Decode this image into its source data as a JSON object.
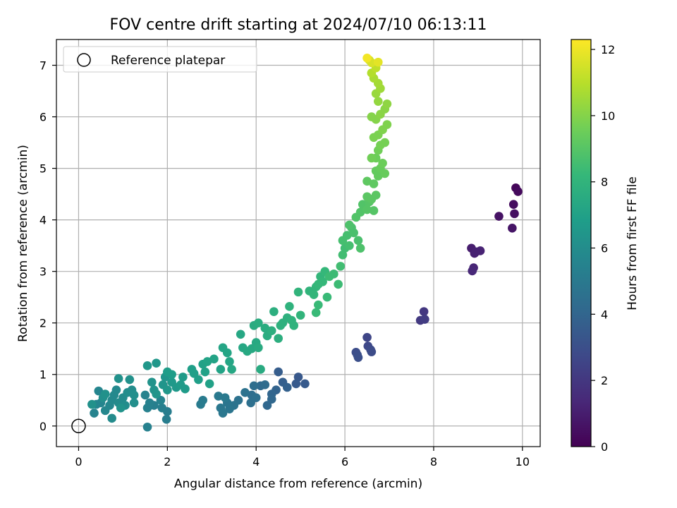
{
  "chart_data": {
    "type": "scatter",
    "title": "FOV centre drift starting at 2024/07/10 06:13:11",
    "xlabel": "Angular distance from reference (arcmin)",
    "ylabel": "Rotation from reference (arcmin)",
    "xlim": [
      -0.5,
      10.4
    ],
    "ylim": [
      -0.4,
      7.5
    ],
    "xticks": [
      0,
      2,
      4,
      6,
      8,
      10
    ],
    "yticks": [
      0,
      1,
      2,
      3,
      4,
      5,
      6,
      7
    ],
    "grid": true,
    "legend": {
      "location": "upper-left",
      "entries": [
        {
          "label": "Reference platepar",
          "marker": "open-circle"
        }
      ]
    },
    "reference_point": {
      "x": 0,
      "y": 0
    },
    "colorbar": {
      "label": "Hours from first FF file",
      "range": [
        0,
        12.3
      ],
      "ticks": [
        0,
        2,
        4,
        6,
        8,
        10,
        12
      ],
      "colormap": "viridis",
      "colormap_stops": [
        "#440154",
        "#482878",
        "#3e4989",
        "#31688e",
        "#26828e",
        "#1f9e89",
        "#35b779",
        "#6ece58",
        "#b5de2b",
        "#fde725"
      ]
    },
    "series": [
      {
        "columns": [
          "x",
          "y",
          "hours"
        ],
        "points": [
          [
            9.85,
            4.62,
            0.2
          ],
          [
            9.9,
            4.55,
            0.3
          ],
          [
            9.8,
            4.3,
            0.4
          ],
          [
            9.82,
            4.12,
            0.5
          ],
          [
            9.47,
            4.07,
            0.6
          ],
          [
            9.77,
            3.84,
            0.7
          ],
          [
            8.85,
            3.45,
            1.0
          ],
          [
            8.92,
            3.35,
            1.1
          ],
          [
            9.05,
            3.4,
            1.2
          ],
          [
            8.95,
            3.38,
            1.15
          ],
          [
            8.9,
            3.07,
            1.3
          ],
          [
            8.87,
            3.01,
            1.35
          ],
          [
            7.78,
            2.22,
            2.0
          ],
          [
            7.7,
            2.05,
            2.1
          ],
          [
            7.8,
            2.07,
            2.2
          ],
          [
            6.5,
            1.72,
            2.6
          ],
          [
            6.52,
            1.55,
            2.7
          ],
          [
            6.58,
            1.48,
            2.8
          ],
          [
            6.6,
            1.44,
            2.85
          ],
          [
            6.25,
            1.43,
            2.9
          ],
          [
            6.28,
            1.38,
            2.95
          ],
          [
            6.3,
            1.33,
            3.0
          ],
          [
            4.95,
            0.95,
            3.4
          ],
          [
            5.1,
            0.82,
            3.5
          ],
          [
            4.9,
            0.82,
            3.5
          ],
          [
            4.5,
            1.05,
            3.6
          ],
          [
            4.6,
            0.85,
            3.7
          ],
          [
            4.7,
            0.75,
            3.8
          ],
          [
            4.45,
            0.7,
            3.9
          ],
          [
            4.35,
            0.62,
            4.0
          ],
          [
            4.25,
            0.4,
            4.1
          ],
          [
            4.35,
            0.52,
            4.1
          ],
          [
            4.1,
            0.78,
            4.2
          ],
          [
            4.2,
            0.8,
            4.3
          ],
          [
            3.95,
            0.78,
            4.4
          ],
          [
            3.9,
            0.6,
            4.4
          ],
          [
            4.0,
            0.55,
            4.5
          ],
          [
            3.88,
            0.45,
            4.5
          ],
          [
            3.75,
            0.65,
            4.6
          ],
          [
            3.6,
            0.5,
            4.6
          ],
          [
            3.5,
            0.4,
            4.7
          ],
          [
            3.4,
            0.33,
            4.8
          ],
          [
            3.35,
            0.45,
            4.8
          ],
          [
            3.25,
            0.25,
            4.9
          ],
          [
            3.2,
            0.35,
            4.9
          ],
          [
            3.15,
            0.58,
            5.0
          ],
          [
            3.3,
            0.55,
            5.0
          ],
          [
            2.8,
            0.5,
            5.1
          ],
          [
            2.75,
            0.42,
            5.1
          ],
          [
            2.0,
            0.28,
            5.2
          ],
          [
            1.98,
            0.13,
            5.2
          ],
          [
            1.88,
            0.35,
            5.3
          ],
          [
            1.7,
            0.4,
            5.3
          ],
          [
            1.55,
            0.35,
            5.4
          ],
          [
            1.6,
            0.45,
            5.4
          ],
          [
            1.55,
            -0.02,
            5.4
          ],
          [
            1.5,
            0.6,
            5.5
          ],
          [
            1.85,
            0.5,
            5.5
          ],
          [
            0.35,
            0.25,
            5.5
          ],
          [
            0.4,
            0.42,
            5.6
          ],
          [
            0.5,
            0.45,
            5.6
          ],
          [
            0.45,
            0.68,
            5.6
          ],
          [
            0.6,
            0.3,
            5.7
          ],
          [
            0.7,
            0.4,
            5.7
          ],
          [
            0.75,
            0.5,
            5.8
          ],
          [
            0.8,
            0.6,
            5.8
          ],
          [
            0.85,
            0.7,
            5.8
          ],
          [
            0.9,
            0.45,
            5.9
          ],
          [
            0.75,
            0.15,
            5.9
          ],
          [
            1.0,
            0.55,
            5.9
          ],
          [
            1.05,
            0.4,
            6.0
          ],
          [
            1.1,
            0.65,
            6.0
          ],
          [
            1.2,
            0.7,
            6.0
          ],
          [
            1.25,
            0.6,
            6.1
          ],
          [
            1.25,
            0.45,
            6.1
          ],
          [
            0.55,
            0.55,
            6.1
          ],
          [
            0.6,
            0.62,
            6.2
          ],
          [
            0.9,
            0.92,
            6.2
          ],
          [
            1.15,
            0.9,
            6.2
          ],
          [
            0.3,
            0.42,
            6.2
          ],
          [
            0.95,
            0.35,
            6.3
          ],
          [
            1.65,
            0.85,
            6.3
          ],
          [
            1.7,
            0.7,
            6.3
          ],
          [
            1.75,
            0.62,
            6.4
          ],
          [
            1.9,
            0.8,
            6.4
          ],
          [
            1.95,
            0.95,
            6.4
          ],
          [
            2.0,
            0.7,
            6.5
          ],
          [
            1.55,
            1.17,
            6.5
          ],
          [
            1.75,
            1.22,
            6.5
          ],
          [
            2.1,
            0.85,
            6.6
          ],
          [
            2.2,
            0.75,
            6.6
          ],
          [
            2.3,
            0.8,
            6.7
          ],
          [
            2.35,
            0.95,
            6.7
          ],
          [
            2.4,
            0.72,
            6.7
          ],
          [
            2.1,
            1.0,
            6.8
          ],
          [
            2.0,
            1.05,
            6.8
          ],
          [
            2.55,
            1.1,
            6.9
          ],
          [
            2.6,
            1.02,
            6.9
          ],
          [
            2.7,
            0.9,
            6.9
          ],
          [
            2.8,
            1.2,
            7.0
          ],
          [
            2.85,
            1.05,
            7.0
          ],
          [
            2.95,
            0.82,
            7.0
          ],
          [
            2.9,
            1.25,
            7.1
          ],
          [
            3.05,
            1.3,
            7.1
          ],
          [
            3.2,
            1.1,
            7.1
          ],
          [
            3.25,
            1.52,
            7.2
          ],
          [
            3.35,
            1.42,
            7.2
          ],
          [
            3.4,
            1.25,
            7.2
          ],
          [
            3.45,
            1.1,
            7.3
          ],
          [
            3.65,
            1.78,
            7.3
          ],
          [
            3.7,
            1.52,
            7.3
          ],
          [
            3.8,
            1.45,
            7.4
          ],
          [
            3.9,
            1.5,
            7.4
          ],
          [
            4.0,
            1.62,
            7.4
          ],
          [
            4.05,
            1.52,
            7.5
          ],
          [
            4.1,
            1.1,
            7.5
          ],
          [
            3.95,
            1.95,
            7.5
          ],
          [
            4.05,
            2.0,
            7.6
          ],
          [
            4.2,
            1.9,
            7.6
          ],
          [
            4.25,
            1.75,
            7.6
          ],
          [
            4.35,
            1.85,
            7.7
          ],
          [
            4.4,
            2.22,
            7.7
          ],
          [
            4.5,
            1.7,
            7.7
          ],
          [
            4.55,
            1.95,
            7.8
          ],
          [
            4.6,
            2.0,
            7.8
          ],
          [
            4.7,
            2.1,
            7.8
          ],
          [
            4.8,
            2.05,
            7.9
          ],
          [
            4.75,
            2.32,
            7.9
          ],
          [
            4.85,
            1.95,
            7.9
          ],
          [
            5.0,
            2.15,
            8.0
          ],
          [
            4.95,
            2.6,
            8.0
          ],
          [
            5.2,
            2.62,
            8.0
          ],
          [
            5.35,
            2.7,
            8.1
          ],
          [
            5.3,
            2.55,
            8.1
          ],
          [
            5.45,
            2.9,
            8.1
          ],
          [
            5.5,
            2.8,
            8.2
          ],
          [
            5.55,
            3.0,
            8.2
          ],
          [
            5.4,
            2.75,
            8.2
          ],
          [
            5.35,
            2.2,
            8.3
          ],
          [
            5.4,
            2.35,
            8.3
          ],
          [
            5.6,
            2.5,
            8.3
          ],
          [
            5.65,
            2.9,
            8.4
          ],
          [
            5.75,
            2.95,
            8.4
          ],
          [
            5.85,
            2.75,
            8.4
          ],
          [
            5.9,
            3.1,
            8.5
          ],
          [
            5.95,
            3.32,
            8.5
          ],
          [
            6.0,
            3.45,
            8.5
          ],
          [
            5.95,
            3.6,
            8.6
          ],
          [
            6.05,
            3.7,
            8.6
          ],
          [
            6.1,
            3.5,
            8.6
          ],
          [
            6.15,
            3.85,
            8.7
          ],
          [
            6.2,
            3.75,
            8.7
          ],
          [
            6.3,
            3.6,
            8.7
          ],
          [
            6.35,
            3.45,
            8.8
          ],
          [
            6.1,
            3.9,
            8.8
          ],
          [
            6.25,
            4.05,
            8.9
          ],
          [
            6.35,
            4.15,
            8.9
          ],
          [
            6.4,
            4.3,
            8.9
          ],
          [
            6.5,
            4.2,
            9.0
          ],
          [
            6.55,
            4.35,
            9.0
          ],
          [
            6.65,
            4.18,
            9.0
          ],
          [
            6.5,
            4.45,
            9.1
          ],
          [
            6.6,
            4.4,
            9.1
          ],
          [
            6.7,
            4.48,
            9.1
          ],
          [
            6.65,
            4.7,
            9.2
          ],
          [
            6.5,
            4.75,
            9.2
          ],
          [
            6.75,
            4.85,
            9.3
          ],
          [
            6.7,
            4.95,
            9.3
          ],
          [
            6.8,
            5.0,
            9.4
          ],
          [
            6.9,
            4.9,
            9.4
          ],
          [
            6.85,
            5.1,
            9.5
          ],
          [
            6.7,
            5.2,
            9.5
          ],
          [
            6.6,
            5.2,
            9.6
          ],
          [
            6.75,
            5.35,
            9.6
          ],
          [
            6.8,
            5.45,
            9.7
          ],
          [
            6.9,
            5.5,
            9.7
          ],
          [
            6.65,
            5.6,
            9.8
          ],
          [
            6.75,
            5.65,
            9.8
          ],
          [
            6.85,
            5.75,
            9.9
          ],
          [
            6.95,
            5.85,
            9.9
          ],
          [
            6.7,
            5.95,
            10.0
          ],
          [
            6.6,
            6.0,
            10.0
          ],
          [
            6.8,
            6.05,
            10.1
          ],
          [
            6.9,
            6.15,
            10.1
          ],
          [
            6.95,
            6.25,
            10.2
          ],
          [
            6.75,
            6.3,
            10.3
          ],
          [
            6.7,
            6.45,
            10.4
          ],
          [
            6.8,
            6.55,
            10.5
          ],
          [
            6.75,
            6.65,
            10.6
          ],
          [
            6.65,
            6.75,
            10.7
          ],
          [
            6.6,
            6.85,
            10.9
          ],
          [
            6.7,
            6.95,
            11.1
          ],
          [
            6.55,
            7.1,
            11.4
          ],
          [
            6.6,
            7.05,
            11.6
          ],
          [
            6.75,
            7.06,
            11.8
          ],
          [
            6.5,
            7.14,
            12.1
          ]
        ]
      }
    ]
  }
}
